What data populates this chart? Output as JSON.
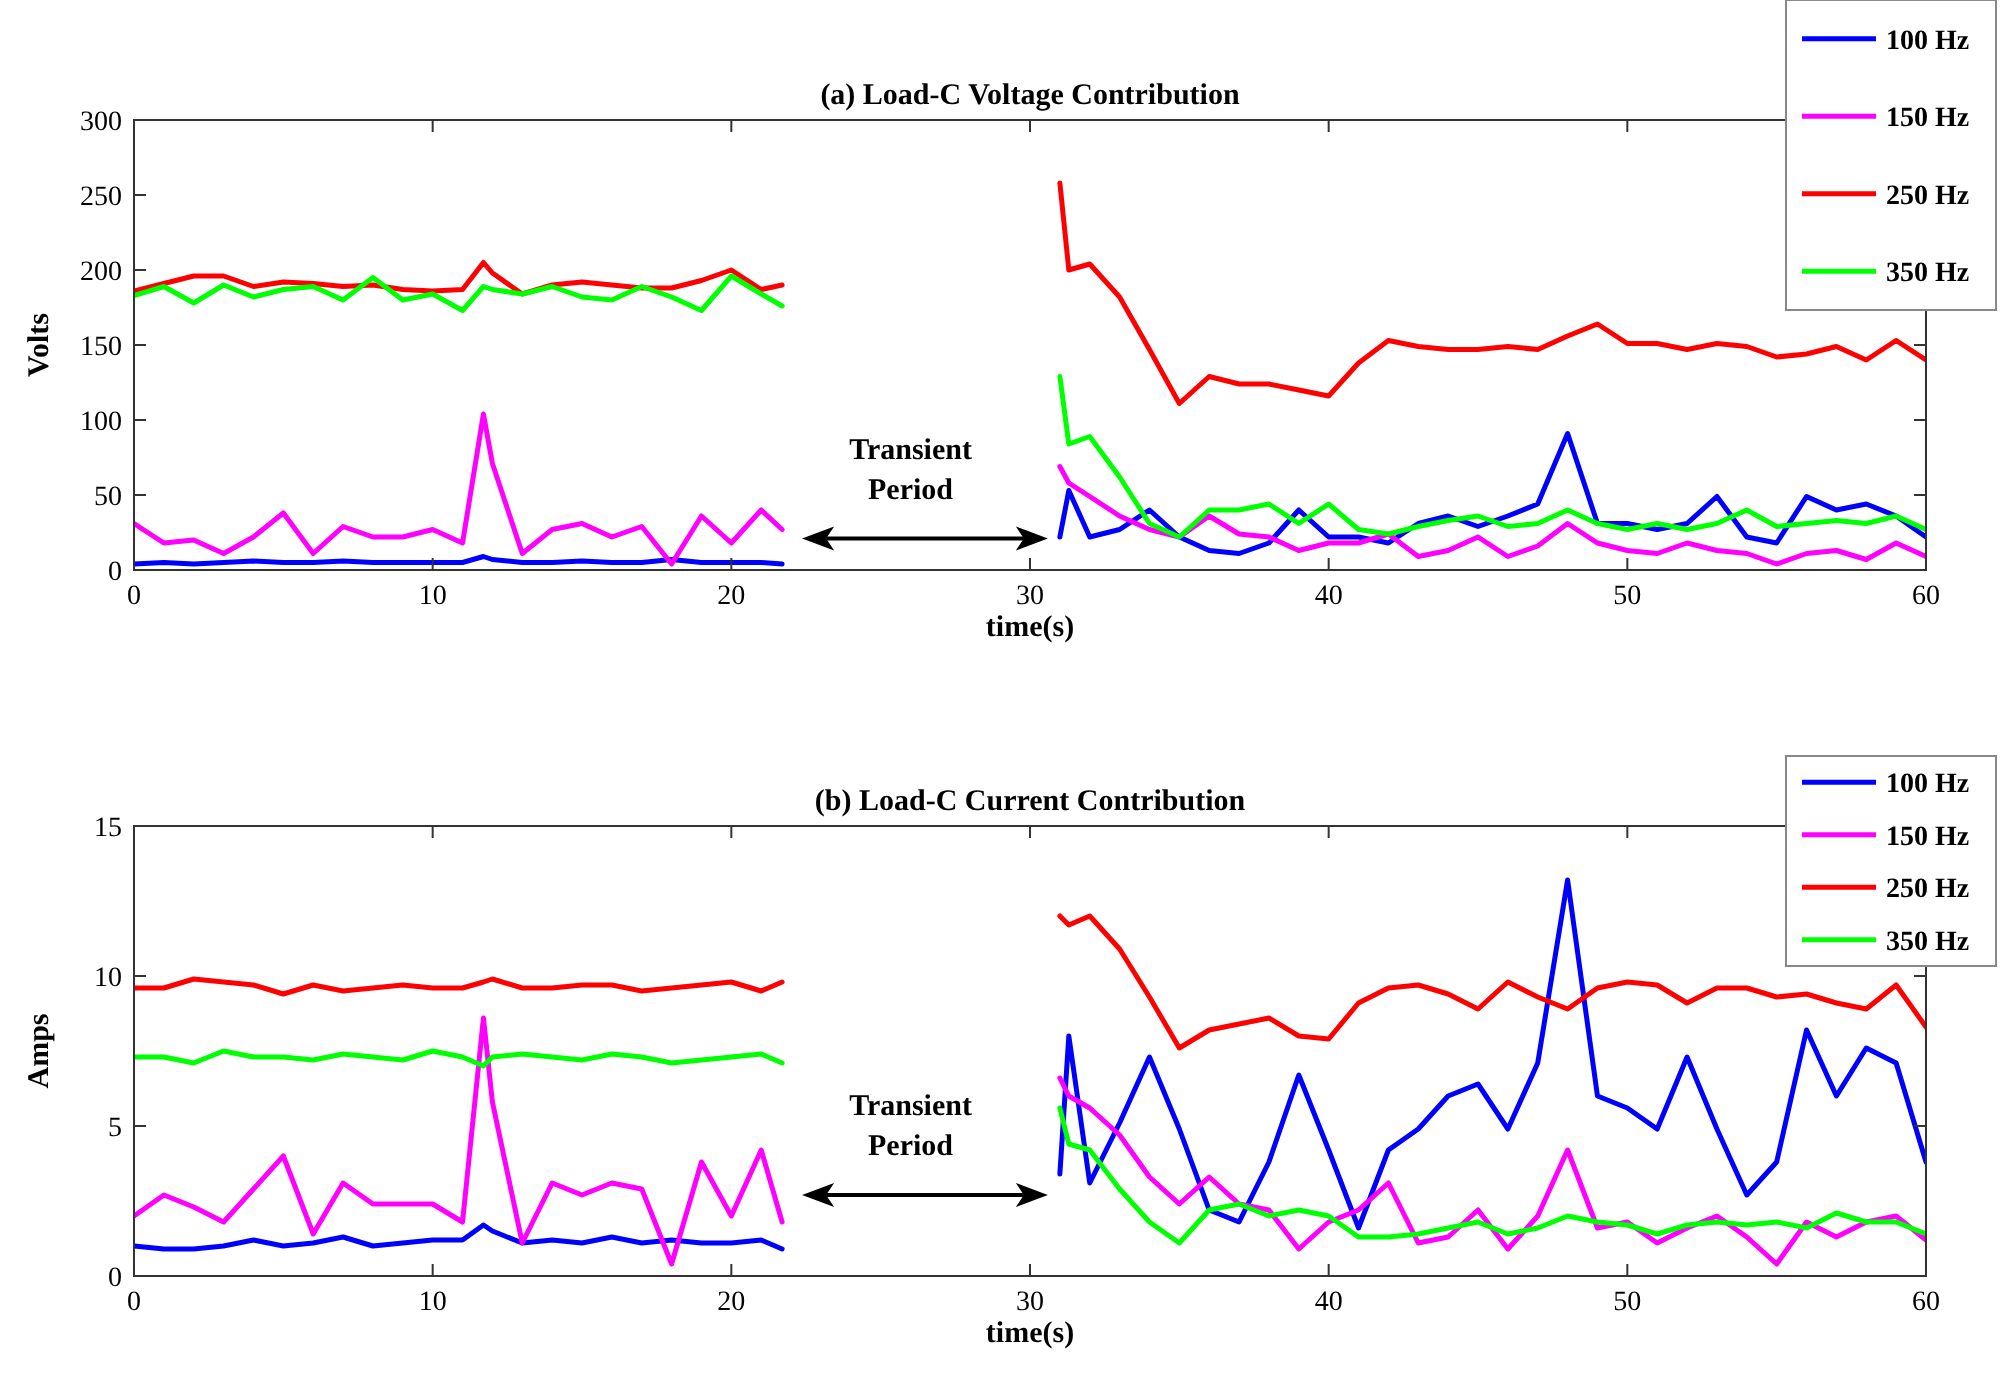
{
  "chart_data": [
    {
      "type": "line",
      "title": "(a) Load-C Voltage Contribution",
      "xlabel": "time(s)",
      "ylabel": "Volts",
      "xlim": [
        0,
        60
      ],
      "xticks": [
        0,
        10,
        20,
        30,
        40,
        50,
        60
      ],
      "ylim": [
        0,
        300
      ],
      "yticks": [
        0,
        50,
        100,
        150,
        200,
        250,
        300
      ],
      "legend": "top right",
      "grid": false,
      "annotations": [
        "Transient Period"
      ],
      "x": [
        0,
        1,
        2,
        3,
        4,
        5,
        6,
        7,
        8,
        9,
        10,
        11,
        11.7,
        12,
        13,
        14,
        15,
        16,
        17,
        18,
        19,
        20,
        21,
        21.7,
        26,
        31,
        31.3,
        32,
        33,
        34,
        35,
        36,
        37,
        38,
        39,
        40,
        41,
        42,
        43,
        44,
        45,
        46,
        47,
        48,
        49,
        50,
        51,
        52,
        53,
        54,
        55,
        56,
        57,
        58,
        59,
        60
      ],
      "series": [
        {
          "name": "100 Hz",
          "color": "#0000ff",
          "values": [
            4,
            5,
            4,
            5,
            6,
            5,
            5,
            6,
            5,
            5,
            5,
            5,
            9,
            7,
            5,
            5,
            6,
            5,
            5,
            7,
            5,
            5,
            5,
            4,
            null,
            22,
            53,
            22,
            27,
            40,
            22,
            13,
            11,
            18,
            40,
            22,
            22,
            18,
            31,
            36,
            29,
            36,
            44,
            91,
            31,
            31,
            27,
            31,
            49,
            22,
            18,
            49,
            40,
            44,
            36,
            22
          ]
        },
        {
          "name": "150 Hz",
          "color": "#ff00ff",
          "values": [
            31,
            18,
            20,
            11,
            22,
            38,
            11,
            29,
            22,
            22,
            27,
            18,
            104,
            71,
            11,
            27,
            31,
            22,
            29,
            4,
            36,
            18,
            40,
            27,
            null,
            69,
            58,
            49,
            36,
            27,
            22,
            36,
            24,
            22,
            13,
            18,
            18,
            24,
            9,
            13,
            22,
            9,
            16,
            31,
            18,
            13,
            11,
            18,
            13,
            11,
            4,
            11,
            13,
            7,
            18,
            9
          ]
        },
        {
          "name": "250 Hz",
          "color": "#ff0000",
          "values": [
            186,
            191,
            196,
            196,
            189,
            192,
            191,
            189,
            190,
            187,
            186,
            187,
            205,
            198,
            184,
            190,
            192,
            190,
            188,
            188,
            193,
            200,
            187,
            190,
            null,
            258,
            200,
            204,
            182,
            147,
            111,
            129,
            124,
            124,
            120,
            116,
            138,
            153,
            149,
            147,
            147,
            149,
            147,
            156,
            164,
            151,
            151,
            147,
            151,
            149,
            142,
            144,
            149,
            140,
            153,
            140
          ]
        },
        {
          "name": "350 Hz",
          "color": "#00ff00",
          "values": [
            183,
            189,
            178,
            190,
            182,
            187,
            189,
            180,
            195,
            180,
            184,
            173,
            189,
            187,
            184,
            189,
            182,
            180,
            189,
            182,
            173,
            196,
            184,
            176,
            null,
            129,
            84,
            89,
            62,
            31,
            22,
            40,
            40,
            44,
            31,
            44,
            27,
            24,
            29,
            33,
            36,
            29,
            31,
            40,
            31,
            27,
            31,
            27,
            31,
            40,
            29,
            31,
            33,
            31,
            36,
            27
          ]
        }
      ]
    },
    {
      "type": "line",
      "title": "(b) Load-C Current Contribution",
      "xlabel": "time(s)",
      "ylabel": "Amps",
      "xlim": [
        0,
        60
      ],
      "xticks": [
        0,
        10,
        20,
        30,
        40,
        50,
        60
      ],
      "ylim": [
        0,
        15
      ],
      "yticks": [
        0,
        5,
        10,
        15
      ],
      "legend": "top right",
      "grid": false,
      "annotations": [
        "Transient Period"
      ],
      "x": [
        0,
        1,
        2,
        3,
        4,
        5,
        6,
        7,
        8,
        9,
        10,
        11,
        11.7,
        12,
        13,
        14,
        15,
        16,
        17,
        18,
        19,
        20,
        21,
        21.7,
        26,
        31,
        31.3,
        32,
        33,
        34,
        35,
        36,
        37,
        38,
        39,
        40,
        41,
        42,
        43,
        44,
        45,
        46,
        47,
        48,
        49,
        50,
        51,
        52,
        53,
        54,
        55,
        56,
        57,
        58,
        59,
        60
      ],
      "series": [
        {
          "name": "100 Hz",
          "color": "#0000ff",
          "values": [
            1.0,
            0.9,
            0.9,
            1.0,
            1.2,
            1.0,
            1.1,
            1.3,
            1.0,
            1.1,
            1.2,
            1.2,
            1.7,
            1.5,
            1.1,
            1.2,
            1.1,
            1.3,
            1.1,
            1.2,
            1.1,
            1.1,
            1.2,
            0.9,
            null,
            3.4,
            8.0,
            3.1,
            5.1,
            7.3,
            4.9,
            2.2,
            1.8,
            3.8,
            6.7,
            4.2,
            1.6,
            4.2,
            4.9,
            6.0,
            6.4,
            4.9,
            7.1,
            13.2,
            6.0,
            5.6,
            4.9,
            7.3,
            4.9,
            2.7,
            3.8,
            8.2,
            6.0,
            7.6,
            7.1,
            3.8
          ]
        },
        {
          "name": "150 Hz",
          "color": "#ff00ff",
          "values": [
            2.0,
            2.7,
            2.3,
            1.8,
            2.9,
            4.0,
            1.4,
            3.1,
            2.4,
            2.4,
            2.4,
            1.8,
            8.6,
            5.8,
            1.1,
            3.1,
            2.7,
            3.1,
            2.9,
            0.4,
            3.8,
            2.0,
            4.2,
            1.8,
            null,
            6.6,
            6.0,
            5.6,
            4.7,
            3.3,
            2.4,
            3.3,
            2.4,
            2.2,
            0.9,
            1.8,
            2.2,
            3.1,
            1.1,
            1.3,
            2.2,
            0.9,
            2.0,
            4.2,
            1.6,
            1.8,
            1.1,
            1.6,
            2.0,
            1.3,
            0.4,
            1.8,
            1.3,
            1.8,
            2.0,
            1.2
          ]
        },
        {
          "name": "250 Hz",
          "color": "#ff0000",
          "values": [
            9.6,
            9.6,
            9.9,
            9.8,
            9.7,
            9.4,
            9.7,
            9.5,
            9.6,
            9.7,
            9.6,
            9.6,
            9.8,
            9.9,
            9.6,
            9.6,
            9.7,
            9.7,
            9.5,
            9.6,
            9.7,
            9.8,
            9.5,
            9.8,
            null,
            12.0,
            11.7,
            12.0,
            10.9,
            9.3,
            7.6,
            8.2,
            8.4,
            8.6,
            8.0,
            7.9,
            9.1,
            9.6,
            9.7,
            9.4,
            8.9,
            9.8,
            9.3,
            8.9,
            9.6,
            9.8,
            9.7,
            9.1,
            9.6,
            9.6,
            9.3,
            9.4,
            9.1,
            8.9,
            9.7,
            8.3
          ]
        },
        {
          "name": "350 Hz",
          "color": "#00ff00",
          "values": [
            7.3,
            7.3,
            7.1,
            7.5,
            7.3,
            7.3,
            7.2,
            7.4,
            7.3,
            7.2,
            7.5,
            7.3,
            7.0,
            7.3,
            7.4,
            7.3,
            7.2,
            7.4,
            7.3,
            7.1,
            7.2,
            7.3,
            7.4,
            7.1,
            null,
            5.6,
            4.4,
            4.2,
            2.9,
            1.8,
            1.1,
            2.2,
            2.4,
            2.0,
            2.2,
            2.0,
            1.3,
            1.3,
            1.4,
            1.6,
            1.8,
            1.4,
            1.6,
            2.0,
            1.8,
            1.7,
            1.4,
            1.7,
            1.8,
            1.7,
            1.8,
            1.6,
            2.1,
            1.8,
            1.8,
            1.4
          ]
        }
      ]
    }
  ]
}
